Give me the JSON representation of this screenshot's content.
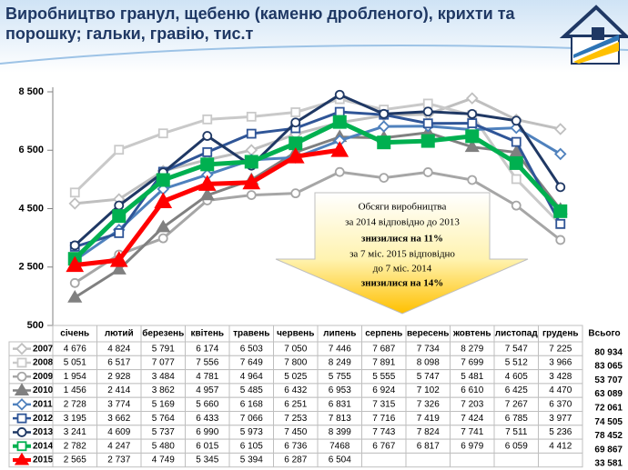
{
  "chart_data": {
    "type": "line",
    "title": [
      "Виробництво гранул, щебеню (каменю дробленого), крихти та",
      "порошку;  гальки, гравію, тис.т"
    ],
    "categories": [
      "січень",
      "лютий",
      "березень",
      "квітень",
      "травень",
      "червень",
      "липень",
      "серпень",
      "вересень",
      "жовтень",
      "листопад",
      "грудень"
    ],
    "total_header": "Всього",
    "ylim": [
      500,
      8500
    ],
    "yticks": [
      {
        "value": 500,
        "label": "500"
      },
      {
        "value": 2500,
        "label": "2 500"
      },
      {
        "value": 4500,
        "label": "4 500"
      },
      {
        "value": 6500,
        "label": "6 500"
      },
      {
        "value": 8500,
        "label": "8 500"
      }
    ],
    "annotation": [
      "Обсяги виробництва",
      "за 2014 відповідно до 2013",
      "знизилися на 11%",
      "за 7 міс. 2015  відповідно",
      "до 7 міс. 2014",
      "знизилися на 14%"
    ],
    "series": [
      {
        "name": "2007",
        "color": "#bfbfbf",
        "marker": "diamond",
        "values": [
          4676,
          4824,
          5791,
          6174,
          6503,
          7050,
          7446,
          7687,
          7734,
          8279,
          7547,
          7225
        ],
        "value_labels": [
          "4 676",
          "4 824",
          "5 791",
          "6 174",
          "6 503",
          "7 050",
          "7 446",
          "7 687",
          "7 734",
          "8 279",
          "7 547",
          "7 225"
        ],
        "total": "80 934"
      },
      {
        "name": "2008",
        "color": "#c9c9c9",
        "marker": "square",
        "values": [
          5051,
          6517,
          7077,
          7556,
          7649,
          7800,
          8249,
          7891,
          8098,
          7699,
          5512,
          3966
        ],
        "value_labels": [
          "5 051",
          "6 517",
          "7 077",
          "7 556",
          "7 649",
          "7 800",
          "8 249",
          "7 891",
          "8 098",
          "7 699",
          "5 512",
          "3 966"
        ],
        "total": "83 065"
      },
      {
        "name": "2009",
        "color": "#a6a6a6",
        "marker": "circle",
        "values": [
          1954,
          2928,
          3484,
          4781,
          4964,
          5025,
          5755,
          5555,
          5747,
          5481,
          4605,
          3428
        ],
        "value_labels": [
          "1 954",
          "2 928",
          "3 484",
          "4 781",
          "4 964",
          "5 025",
          "5 755",
          "5 555",
          "5 747",
          "5 481",
          "4 605",
          "3 428"
        ],
        "total": "53 707"
      },
      {
        "name": "2010",
        "color": "#808080",
        "marker": "triangle",
        "values": [
          1456,
          2414,
          3862,
          4957,
          5485,
          6432,
          6953,
          6924,
          7102,
          6610,
          6425,
          4470
        ],
        "value_labels": [
          "1 456",
          "2 414",
          "3 862",
          "4 957",
          "5 485",
          "6 432",
          "6 953",
          "6 924",
          "7 102",
          "6 610",
          "6 425",
          "4 470"
        ],
        "total": "63 089"
      },
      {
        "name": "2011",
        "color": "#4f81bd",
        "marker": "diamond",
        "values": [
          2728,
          3774,
          5169,
          5660,
          6168,
          6251,
          6831,
          7315,
          7326,
          7203,
          7267,
          6370
        ],
        "value_labels": [
          "2 728",
          "3 774",
          "5 169",
          "5 660",
          "6 168",
          "6 251",
          "6 831",
          "7 315",
          "7 326",
          "7 203",
          "7 267",
          "6 370"
        ],
        "total": "72 061"
      },
      {
        "name": "2012",
        "color": "#2f5597",
        "marker": "square",
        "values": [
          3195,
          3662,
          5764,
          6433,
          7066,
          7253,
          7813,
          7716,
          7419,
          7424,
          6785,
          3977
        ],
        "value_labels": [
          "3 195",
          "3 662",
          "5 764",
          "6 433",
          "7 066",
          "7 253",
          "7 813",
          "7 716",
          "7 419",
          "7 424",
          "6 785",
          "3 977"
        ],
        "total": "74 505"
      },
      {
        "name": "2013",
        "color": "#1f3864",
        "marker": "circle",
        "values": [
          3241,
          4609,
          5737,
          6990,
          5973,
          7450,
          8399,
          7743,
          7824,
          7741,
          7511,
          5236
        ],
        "value_labels": [
          "3 241",
          "4 609",
          "5 737",
          "6 990",
          "5 973",
          "7 450",
          "8 399",
          "7 743",
          "7 824",
          "7 741",
          "7 511",
          "5 236"
        ],
        "total": "78 452"
      },
      {
        "name": "2014",
        "color": "#00b050",
        "marker": "square",
        "values": [
          2782,
          4247,
          5480,
          6015,
          6105,
          6736,
          7468,
          6767,
          6817,
          6979,
          6059,
          4412
        ],
        "value_labels": [
          "2 782",
          "4 247",
          "5 480",
          "6 015",
          "6 105",
          "6 736",
          "7468",
          "6 767",
          "6 817",
          "6 979",
          "6 059",
          "4 412"
        ],
        "total": "69 867"
      },
      {
        "name": "2015",
        "color": "#ff0000",
        "marker": "triangle",
        "values": [
          2565,
          2737,
          4749,
          5345,
          5394,
          6287,
          6504,
          null,
          null,
          null,
          null,
          null
        ],
        "value_labels": [
          "2 565",
          "2 737",
          "4 749",
          "5 345",
          "5 394",
          "6 287",
          "6 504",
          null,
          null,
          null,
          null,
          null
        ],
        "total": "33 581"
      }
    ]
  }
}
